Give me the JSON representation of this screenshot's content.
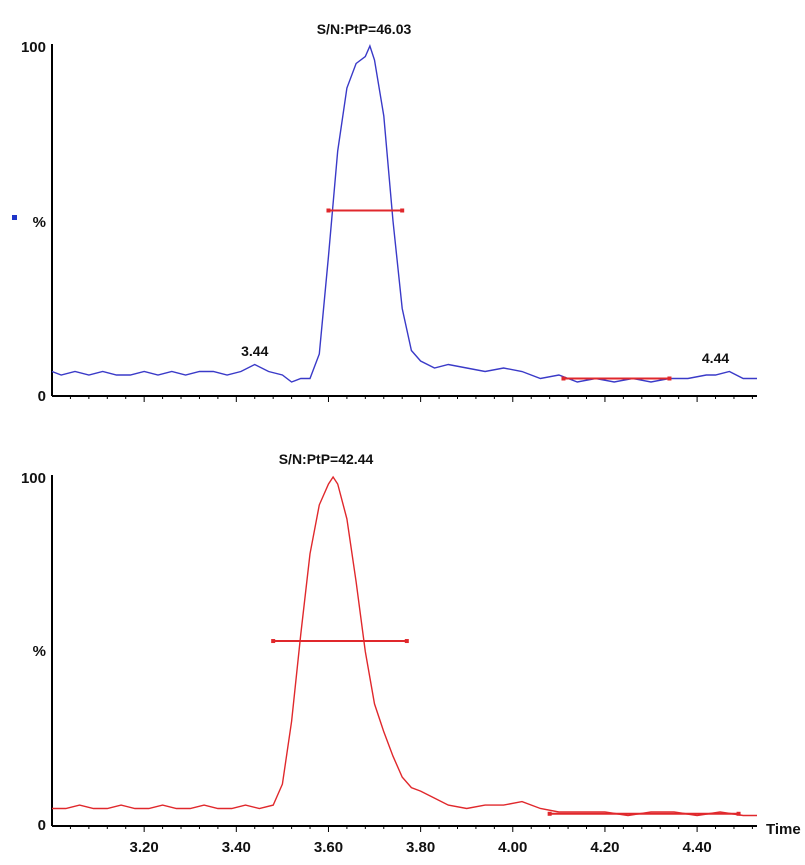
{
  "colors": {
    "top_trace": "#3a3ac8",
    "bottom_trace": "#e0282c",
    "marker": "#e0282c",
    "axis": "#000000",
    "legend_square": "#1f35c8"
  },
  "chart_data": [
    {
      "type": "line",
      "title": "S/N:PtP=46.03",
      "xlim": [
        3.0,
        4.53
      ],
      "ylim": [
        0,
        100
      ],
      "ylabel": "%",
      "y_ticks": [
        "100",
        "%",
        "0"
      ],
      "annotations": [
        {
          "text": "3.44",
          "x": 3.44,
          "y": 8
        },
        {
          "text": "4.44",
          "x": 4.44,
          "y": 6
        }
      ],
      "noise_bar": {
        "x1": 4.11,
        "x2": 4.34,
        "y": 5
      },
      "width_bar": {
        "x1": 3.6,
        "x2": 3.76,
        "y": 53
      },
      "series": [
        {
          "color": "#3a3ac8",
          "x": [
            3.0,
            3.02,
            3.05,
            3.08,
            3.11,
            3.14,
            3.17,
            3.2,
            3.23,
            3.26,
            3.29,
            3.32,
            3.35,
            3.38,
            3.41,
            3.44,
            3.47,
            3.5,
            3.52,
            3.54,
            3.56,
            3.58,
            3.6,
            3.62,
            3.64,
            3.66,
            3.68,
            3.69,
            3.7,
            3.72,
            3.74,
            3.76,
            3.78,
            3.8,
            3.83,
            3.86,
            3.9,
            3.94,
            3.98,
            4.02,
            4.06,
            4.1,
            4.14,
            4.18,
            4.22,
            4.26,
            4.3,
            4.34,
            4.38,
            4.42,
            4.44,
            4.47,
            4.5,
            4.53
          ],
          "y": [
            7,
            6,
            7,
            6,
            7,
            6,
            6,
            7,
            6,
            7,
            6,
            7,
            7,
            6,
            7,
            9,
            7,
            6,
            4,
            5,
            5,
            12,
            40,
            70,
            88,
            95,
            97,
            100,
            96,
            80,
            50,
            25,
            13,
            10,
            8,
            9,
            8,
            7,
            8,
            7,
            5,
            6,
            4,
            5,
            4,
            5,
            4,
            5,
            5,
            6,
            6,
            7,
            5,
            5
          ]
        }
      ]
    },
    {
      "type": "line",
      "title": "S/N:PtP=42.44",
      "xlim": [
        3.0,
        4.53
      ],
      "ylim": [
        0,
        100
      ],
      "ylabel": "%",
      "xlabel": "Time",
      "y_ticks": [
        "100",
        "%",
        "0"
      ],
      "x_ticks": [
        "3.20",
        "3.40",
        "3.60",
        "3.80",
        "4.00",
        "4.20",
        "4.40"
      ],
      "x_tick_values": [
        3.2,
        3.4,
        3.6,
        3.8,
        4.0,
        4.2,
        4.4
      ],
      "noise_bar": {
        "x1": 4.08,
        "x2": 4.49,
        "y": 3.5
      },
      "width_bar": {
        "x1": 3.48,
        "x2": 3.77,
        "y": 53
      },
      "series": [
        {
          "color": "#e0282c",
          "x": [
            3.0,
            3.03,
            3.06,
            3.09,
            3.12,
            3.15,
            3.18,
            3.21,
            3.24,
            3.27,
            3.3,
            3.33,
            3.36,
            3.39,
            3.42,
            3.45,
            3.48,
            3.5,
            3.52,
            3.54,
            3.56,
            3.58,
            3.6,
            3.61,
            3.62,
            3.64,
            3.66,
            3.68,
            3.7,
            3.72,
            3.74,
            3.76,
            3.78,
            3.8,
            3.83,
            3.86,
            3.9,
            3.94,
            3.98,
            4.02,
            4.06,
            4.1,
            4.15,
            4.2,
            4.25,
            4.3,
            4.35,
            4.4,
            4.45,
            4.5,
            4.53
          ],
          "y": [
            5,
            5,
            6,
            5,
            5,
            6,
            5,
            5,
            6,
            5,
            5,
            6,
            5,
            5,
            6,
            5,
            6,
            12,
            30,
            55,
            78,
            92,
            98,
            100,
            98,
            88,
            70,
            50,
            35,
            27,
            20,
            14,
            11,
            10,
            8,
            6,
            5,
            6,
            6,
            7,
            5,
            4,
            4,
            4,
            3,
            4,
            4,
            3,
            4,
            3,
            3
          ]
        }
      ]
    }
  ]
}
